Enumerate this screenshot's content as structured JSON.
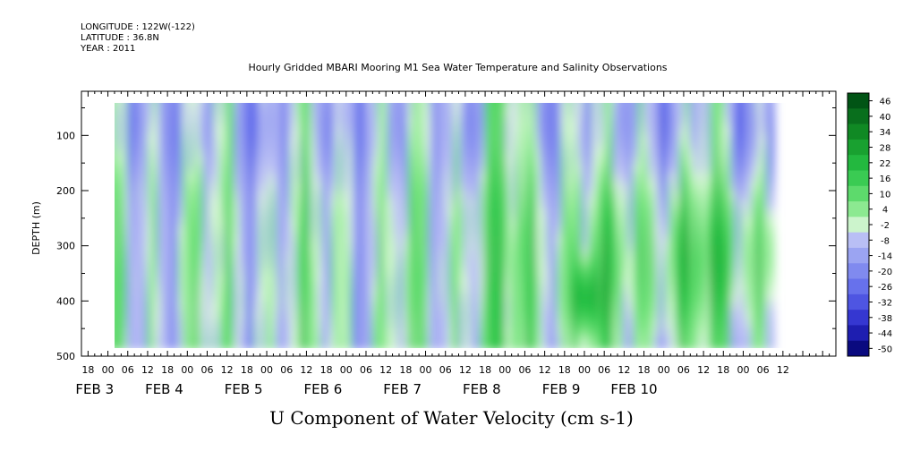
{
  "header": {
    "longitude": "LONGITUDE : 122W(-122)",
    "latitude": "LATITUDE : 36.8N",
    "year": "YEAR : 2011",
    "title": "Hourly Gridded MBARI Mooring M1 Sea Water Temperature and Salinity Observations"
  },
  "chart_data": {
    "type": "heatmap",
    "title": "Hourly Gridded MBARI Mooring M1 Sea Water Temperature and Salinity Observations",
    "xlabel": "U Component of Water Velocity (cm s-1)",
    "ylabel": "DEPTH (m)",
    "y_ticks": [
      100,
      200,
      300,
      400,
      500
    ],
    "y_range": [
      20,
      500
    ],
    "y_inverted": true,
    "x_range_hours": [
      -8,
      220
    ],
    "x_tick_labels": [
      {
        "h": -6,
        "label": "18"
      },
      {
        "h": 0,
        "label": "00"
      },
      {
        "h": 6,
        "label": "06"
      },
      {
        "h": 12,
        "label": "12"
      },
      {
        "h": 18,
        "label": "18"
      },
      {
        "h": 24,
        "label": "00"
      },
      {
        "h": 30,
        "label": "06"
      },
      {
        "h": 36,
        "label": "12"
      },
      {
        "h": 42,
        "label": "18"
      },
      {
        "h": 48,
        "label": "00"
      },
      {
        "h": 54,
        "label": "06"
      },
      {
        "h": 60,
        "label": "12"
      },
      {
        "h": 66,
        "label": "18"
      },
      {
        "h": 72,
        "label": "00"
      },
      {
        "h": 78,
        "label": "06"
      },
      {
        "h": 84,
        "label": "12"
      },
      {
        "h": 90,
        "label": "18"
      },
      {
        "h": 96,
        "label": "00"
      },
      {
        "h": 102,
        "label": "06"
      },
      {
        "h": 108,
        "label": "12"
      },
      {
        "h": 114,
        "label": "18"
      },
      {
        "h": 120,
        "label": "00"
      },
      {
        "h": 126,
        "label": "06"
      },
      {
        "h": 132,
        "label": "12"
      },
      {
        "h": 138,
        "label": "18"
      },
      {
        "h": 144,
        "label": "00"
      },
      {
        "h": 150,
        "label": "06"
      },
      {
        "h": 156,
        "label": "12"
      },
      {
        "h": 162,
        "label": "18"
      },
      {
        "h": 168,
        "label": "00"
      },
      {
        "h": 174,
        "label": "06"
      },
      {
        "h": 180,
        "label": "12"
      },
      {
        "h": 186,
        "label": "18"
      },
      {
        "h": 192,
        "label": "00"
      },
      {
        "h": 198,
        "label": "06"
      },
      {
        "h": 204,
        "label": "12"
      }
    ],
    "date_labels": [
      {
        "h": -4,
        "label": "FEB  3"
      },
      {
        "h": 17,
        "label": "FEB  4"
      },
      {
        "h": 41,
        "label": "FEB  5"
      },
      {
        "h": 65,
        "label": "FEB  6"
      },
      {
        "h": 89,
        "label": "FEB  7"
      },
      {
        "h": 113,
        "label": "FEB  8"
      },
      {
        "h": 137,
        "label": "FEB  9"
      },
      {
        "h": 159,
        "label": "FEB 10"
      }
    ],
    "data_x_range_hours": [
      0,
      201
    ],
    "data_y_range": [
      20,
      485
    ],
    "colorbar_levels": [
      46,
      40,
      34,
      28,
      22,
      16,
      10,
      4,
      -2,
      -8,
      -14,
      -20,
      -26,
      -32,
      -38,
      -44,
      -50
    ],
    "colorbar_range": [
      -50,
      50
    ],
    "dominant_pattern": "Alternating vertical bands of negative (blue, about -10 to -25) and positive (green, about 5 to 30) velocity; strongest positive values (about 34-40) near 380-420 m around FEB 9 00Z."
  }
}
